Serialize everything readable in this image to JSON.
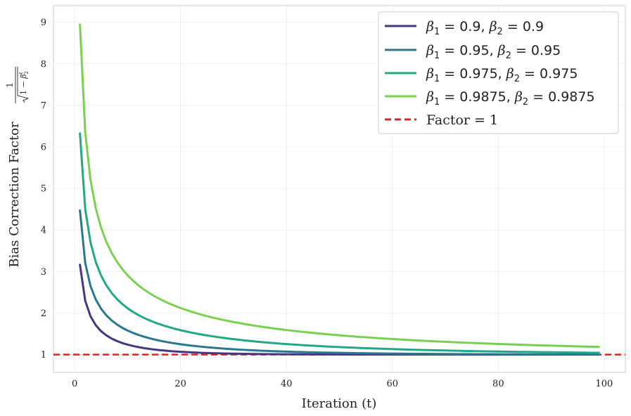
{
  "chart_data": {
    "type": "line",
    "title": "",
    "xlabel": "Iteration (t)",
    "ylabel": "Bias Correction Factor",
    "ylabel_math": {
      "numerator": "1",
      "radicand_prefix": "1 − ",
      "symbol": "β",
      "superscript": "t",
      "subscript": "2"
    },
    "xlim": [
      -4,
      104
    ],
    "ylim": [
      0.57,
      9.4
    ],
    "xticks": [
      0,
      20,
      40,
      60,
      80,
      100
    ],
    "yticks": [
      1,
      2,
      3,
      4,
      5,
      6,
      7,
      8,
      9
    ],
    "grid": true,
    "legend_position": "top-right",
    "x_range": [
      1,
      99
    ],
    "series": [
      {
        "beta1": "0.9",
        "beta2": "0.9",
        "label": "β₁ = 0.9, β₂ = 0.9",
        "color": "#453781",
        "points": [
          [
            1,
            3.16
          ],
          [
            2,
            2.29
          ],
          [
            3,
            1.92
          ],
          [
            5,
            1.53
          ],
          [
            10,
            1.23
          ],
          [
            20,
            1.06
          ],
          [
            40,
            1.01
          ],
          [
            99,
            1.0
          ]
        ]
      },
      {
        "beta1": "0.95",
        "beta2": "0.95",
        "label": "β₁ = 0.95, β₂ = 0.95",
        "color": "#2a788e",
        "points": [
          [
            1,
            4.47
          ],
          [
            2,
            3.2
          ],
          [
            3,
            2.65
          ],
          [
            5,
            2.09
          ],
          [
            10,
            1.6
          ],
          [
            20,
            1.28
          ],
          [
            40,
            1.07
          ],
          [
            99,
            1.0
          ]
        ]
      },
      {
        "beta1": "0.975",
        "beta2": "0.975",
        "label": "β₁ = 0.975, β₂ = 0.975",
        "color": "#22a884",
        "points": [
          [
            1,
            6.32
          ],
          [
            2,
            4.5
          ],
          [
            3,
            3.69
          ],
          [
            5,
            2.91
          ],
          [
            10,
            2.13
          ],
          [
            20,
            1.6
          ],
          [
            40,
            1.26
          ],
          [
            99,
            1.04
          ]
        ]
      },
      {
        "beta1": "0.9875",
        "beta2": "0.9875",
        "label": "β₁ = 0.9875, β₂ = 0.9875",
        "color": "#7ad151",
        "points": [
          [
            1,
            8.94
          ],
          [
            2,
            6.34
          ],
          [
            3,
            5.19
          ],
          [
            5,
            4.06
          ],
          [
            10,
            2.94
          ],
          [
            20,
            2.15
          ],
          [
            40,
            1.58
          ],
          [
            99,
            1.18
          ]
        ]
      }
    ],
    "reference_line": {
      "y": 1,
      "label": "Factor = 1",
      "color": "#d62728",
      "style": "dashed"
    }
  }
}
